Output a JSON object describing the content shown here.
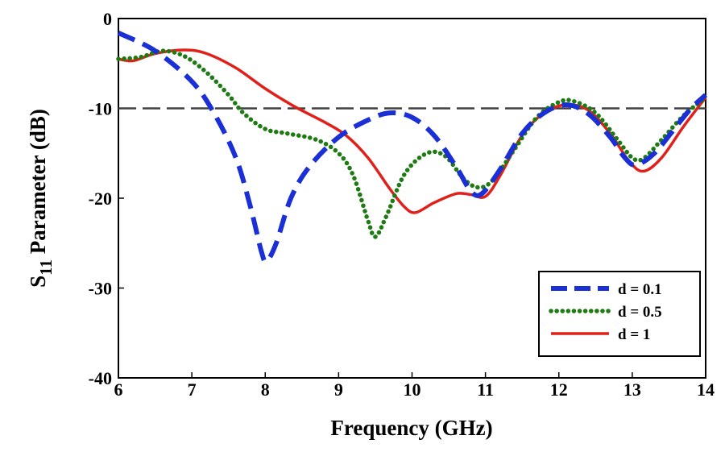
{
  "chart_data": {
    "type": "line",
    "title": "",
    "xlabel": "Frequency (GHz)",
    "ylabel": {
      "prefix": "S",
      "subscript": "11",
      "suffix": " Parameter (dB)"
    },
    "xlim": [
      6,
      14
    ],
    "ylim": [
      -40,
      0
    ],
    "xticks": [
      "6",
      "7",
      "8",
      "9",
      "10",
      "11",
      "12",
      "13",
      "14"
    ],
    "yticks": [
      "0",
      "-10",
      "-20",
      "-30",
      "-40"
    ],
    "grid": false,
    "reference_line": {
      "y": -10,
      "style": "dashed",
      "color": "#404040"
    },
    "legend_position": "bottom-right",
    "series": [
      {
        "name": "d = 0.1",
        "color": "#1a2fd6",
        "style": "dashed",
        "points": [
          [
            6.0,
            -1.6
          ],
          [
            6.5,
            -3.6
          ],
          [
            7.0,
            -7.0
          ],
          [
            7.3,
            -10.5
          ],
          [
            7.6,
            -15.5
          ],
          [
            7.8,
            -21.0
          ],
          [
            7.95,
            -26.0
          ],
          [
            8.02,
            -27.0
          ],
          [
            8.15,
            -25.0
          ],
          [
            8.35,
            -20.0
          ],
          [
            8.6,
            -16.5
          ],
          [
            9.0,
            -13.2
          ],
          [
            9.4,
            -11.3
          ],
          [
            9.7,
            -10.5
          ],
          [
            10.0,
            -11.0
          ],
          [
            10.3,
            -13.0
          ],
          [
            10.6,
            -16.5
          ],
          [
            10.8,
            -19.2
          ],
          [
            10.95,
            -19.5
          ],
          [
            11.2,
            -16.8
          ],
          [
            11.5,
            -12.8
          ],
          [
            11.8,
            -10.5
          ],
          [
            12.1,
            -9.6
          ],
          [
            12.4,
            -10.6
          ],
          [
            12.7,
            -13.2
          ],
          [
            12.9,
            -15.5
          ],
          [
            13.05,
            -16.3
          ],
          [
            13.3,
            -15.0
          ],
          [
            13.6,
            -12.0
          ],
          [
            13.8,
            -10.0
          ],
          [
            14.0,
            -8.5
          ]
        ]
      },
      {
        "name": "d = 0.5",
        "color": "#1e7a12",
        "style": "dotted",
        "points": [
          [
            6.0,
            -4.5
          ],
          [
            6.3,
            -4.3
          ],
          [
            6.6,
            -3.6
          ],
          [
            6.9,
            -4.2
          ],
          [
            7.2,
            -6.0
          ],
          [
            7.5,
            -8.5
          ],
          [
            7.7,
            -10.5
          ],
          [
            8.0,
            -12.3
          ],
          [
            8.3,
            -12.8
          ],
          [
            8.7,
            -13.5
          ],
          [
            9.0,
            -15.0
          ],
          [
            9.2,
            -17.5
          ],
          [
            9.4,
            -22.5
          ],
          [
            9.5,
            -24.3
          ],
          [
            9.65,
            -22.0
          ],
          [
            9.9,
            -17.3
          ],
          [
            10.2,
            -15.0
          ],
          [
            10.45,
            -15.3
          ],
          [
            10.7,
            -17.8
          ],
          [
            10.9,
            -18.8
          ],
          [
            11.1,
            -18.0
          ],
          [
            11.4,
            -14.5
          ],
          [
            11.7,
            -11.0
          ],
          [
            12.0,
            -9.3
          ],
          [
            12.2,
            -9.2
          ],
          [
            12.5,
            -10.5
          ],
          [
            12.8,
            -13.5
          ],
          [
            13.0,
            -15.5
          ],
          [
            13.15,
            -15.6
          ],
          [
            13.4,
            -13.5
          ],
          [
            13.7,
            -10.8
          ],
          [
            14.0,
            -8.8
          ]
        ]
      },
      {
        "name": "d = 1",
        "color": "#e0201a",
        "style": "solid",
        "points": [
          [
            6.0,
            -4.5
          ],
          [
            6.2,
            -4.7
          ],
          [
            6.5,
            -3.9
          ],
          [
            6.9,
            -3.5
          ],
          [
            7.2,
            -3.9
          ],
          [
            7.6,
            -5.5
          ],
          [
            8.0,
            -7.8
          ],
          [
            8.4,
            -9.8
          ],
          [
            8.8,
            -11.5
          ],
          [
            9.1,
            -13.0
          ],
          [
            9.4,
            -15.5
          ],
          [
            9.7,
            -19.0
          ],
          [
            9.9,
            -21.0
          ],
          [
            10.05,
            -21.6
          ],
          [
            10.3,
            -20.5
          ],
          [
            10.6,
            -19.5
          ],
          [
            10.8,
            -19.6
          ],
          [
            11.0,
            -19.8
          ],
          [
            11.2,
            -17.5
          ],
          [
            11.5,
            -13.0
          ],
          [
            11.8,
            -10.5
          ],
          [
            12.1,
            -9.6
          ],
          [
            12.4,
            -10.2
          ],
          [
            12.7,
            -12.8
          ],
          [
            12.95,
            -15.8
          ],
          [
            13.15,
            -17.0
          ],
          [
            13.4,
            -15.5
          ],
          [
            13.7,
            -12.0
          ],
          [
            14.0,
            -8.8
          ]
        ]
      }
    ]
  }
}
